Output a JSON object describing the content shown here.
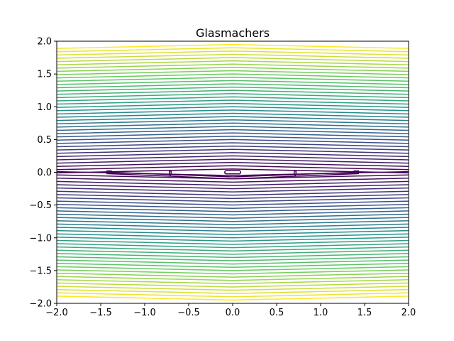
{
  "chart_data": {
    "type": "contour",
    "title": "Glasmachers",
    "xlabel": "",
    "ylabel": "",
    "xlim": [
      -2.0,
      2.0
    ],
    "ylim": [
      -2.0,
      2.0
    ],
    "x_tick_values": [
      -2.0,
      -1.5,
      -1.0,
      -0.5,
      0.0,
      0.5,
      1.0,
      1.5,
      2.0
    ],
    "x_tick_labels": [
      "−2.0",
      "−1.5",
      "−1.0",
      "−0.5",
      "0.0",
      "0.5",
      "1.0",
      "1.5",
      "2.0"
    ],
    "y_tick_values": [
      2.0,
      1.5,
      1.0,
      0.5,
      0.0,
      -0.5,
      -1.0,
      -1.5,
      -2.0
    ],
    "y_tick_labels": [
      "2.0",
      "1.5",
      "1.0",
      "0.5",
      "0.0",
      "−0.5",
      "−1.0",
      "−1.5",
      "−2.0"
    ],
    "colormap": "viridis",
    "colormap_stops": [
      "#440154",
      "#3b528b",
      "#21918c",
      "#5ec962",
      "#fde725"
    ],
    "levels": [
      0.05,
      0.1,
      0.15,
      0.2,
      0.25,
      0.3,
      0.35,
      0.4,
      0.45,
      0.5,
      0.55,
      0.6,
      0.65,
      0.7,
      0.75,
      0.8,
      0.85,
      0.9,
      0.95,
      1.0,
      1.05,
      1.1,
      1.15,
      1.2,
      1.25,
      1.3,
      1.35,
      1.4,
      1.45,
      1.5,
      1.55,
      1.6,
      1.65,
      1.7,
      1.75,
      1.8,
      1.85,
      1.9,
      1.95
    ],
    "grid": false,
    "legend": "none"
  }
}
